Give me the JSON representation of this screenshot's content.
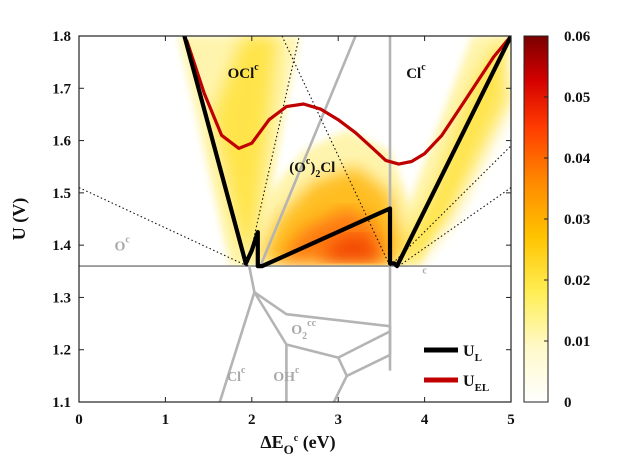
{
  "chart_data": {
    "type": "line",
    "xlabel": {
      "main": "ΔE",
      "sub": "O",
      "sup": "c",
      "unit": " (eV)"
    },
    "ylabel": "U (V)",
    "xlim": [
      0,
      5
    ],
    "ylim": [
      1.1,
      1.8
    ],
    "xticks": [
      0,
      1,
      2,
      3,
      4,
      5
    ],
    "xtick_labels": [
      "0",
      "1",
      "2",
      "3",
      "4",
      "5"
    ],
    "yticks": [
      1.1,
      1.2,
      1.3,
      1.4,
      1.5,
      1.6,
      1.7,
      1.8
    ],
    "ytick_labels": [
      "1.1",
      "1.2",
      "1.3",
      "1.4",
      "1.5",
      "1.6",
      "1.7",
      "1.8"
    ],
    "colorbar": {
      "min": 0,
      "max": 0.06,
      "ticks": [
        0,
        0.01,
        0.02,
        0.03,
        0.04,
        0.05,
        0.06
      ],
      "tick_labels": [
        "0",
        "0.01",
        "0.02",
        "0.03",
        "0.04",
        "0.05",
        "0.06"
      ]
    },
    "series": [
      {
        "name": "U_L",
        "label_main": "U",
        "label_sub": "L",
        "color": "#000000",
        "x": [
          1.22,
          1.93,
          2.0,
          2.07,
          2.07,
          2.12,
          3.6,
          3.6,
          3.65,
          3.68,
          5.0
        ],
        "y": [
          1.8,
          1.365,
          1.39,
          1.425,
          1.36,
          1.36,
          1.47,
          1.365,
          1.365,
          1.36,
          1.8
        ]
      },
      {
        "name": "U_EL",
        "label_main": "U",
        "label_sub": "EL",
        "color": "#c00000",
        "x": [
          1.25,
          1.45,
          1.65,
          1.85,
          2.0,
          2.2,
          2.4,
          2.6,
          2.8,
          3.0,
          3.2,
          3.4,
          3.55,
          3.7,
          3.85,
          4.0,
          4.2,
          4.4,
          4.6,
          4.8,
          5.0
        ],
        "y": [
          1.79,
          1.69,
          1.61,
          1.585,
          1.595,
          1.64,
          1.665,
          1.67,
          1.66,
          1.64,
          1.615,
          1.585,
          1.562,
          1.555,
          1.56,
          1.575,
          1.61,
          1.66,
          1.71,
          1.76,
          1.8
        ]
      }
    ],
    "region_boundaries": [
      {
        "x": [
          0,
          5
        ],
        "y": [
          1.36,
          1.36
        ]
      },
      {
        "x": [
          3.6,
          3.6
        ],
        "y": [
          1.36,
          1.8
        ]
      },
      {
        "x": [
          3.6,
          3.6
        ],
        "y": [
          1.36,
          1.16
        ]
      },
      {
        "x": [
          2.1,
          3.2
        ],
        "y": [
          1.36,
          1.8
        ]
      },
      {
        "x": [
          1.97,
          2.03
        ],
        "y": [
          1.36,
          1.31
        ]
      },
      {
        "x": [
          2.03,
          1.63
        ],
        "y": [
          1.31,
          1.1
        ]
      },
      {
        "x": [
          2.03,
          2.4,
          3.6
        ],
        "y": [
          1.31,
          1.268,
          1.245
        ]
      },
      {
        "x": [
          2.03,
          2.4,
          3.0,
          3.6
        ],
        "y": [
          1.31,
          1.21,
          1.185,
          1.235
        ]
      },
      {
        "x": [
          2.4,
          2.4
        ],
        "y": [
          1.21,
          1.1
        ]
      },
      {
        "x": [
          3.0,
          3.1
        ],
        "y": [
          1.185,
          1.15
        ]
      },
      {
        "x": [
          3.1,
          2.95
        ],
        "y": [
          1.15,
          1.1
        ]
      },
      {
        "x": [
          3.1,
          3.6,
          3.6
        ],
        "y": [
          1.15,
          1.19,
          1.245
        ]
      }
    ],
    "dotted_lines": [
      {
        "x": [
          0,
          1.95
        ],
        "y": [
          1.51,
          1.36
        ]
      },
      {
        "x": [
          1.95,
          2.55
        ],
        "y": [
          1.36,
          1.8
        ]
      },
      {
        "x": [
          2.35,
          3.6
        ],
        "y": [
          1.8,
          1.36
        ]
      },
      {
        "x": [
          3.6,
          5.0
        ],
        "y": [
          1.36,
          1.59
        ]
      },
      {
        "x": [
          5.0,
          3.7
        ],
        "y": [
          1.51,
          1.36
        ]
      }
    ],
    "density_bands": [
      {
        "name": "left-band",
        "lo": [
          [
            1.15,
            1.8
          ],
          [
            1.75,
            1.36
          ]
        ],
        "hi": [
          [
            2.55,
            1.8
          ],
          [
            2.05,
            1.36
          ]
        ]
      },
      {
        "name": "right-band",
        "lo": [
          [
            3.55,
            1.36
          ],
          [
            4.55,
            1.8
          ]
        ],
        "hi": [
          [
            3.95,
            1.36
          ],
          [
            5.05,
            1.8
          ]
        ]
      },
      {
        "name": "middle-blob",
        "poly": [
          [
            2.0,
            1.36
          ],
          [
            2.2,
            1.5
          ],
          [
            2.6,
            1.58
          ],
          [
            3.1,
            1.62
          ],
          [
            3.6,
            1.58
          ],
          [
            3.9,
            1.45
          ],
          [
            3.8,
            1.36
          ]
        ]
      }
    ],
    "region_labels": [
      {
        "id": "ocl",
        "text": "OCl",
        "sup": "c",
        "x": 1.9,
        "y": 1.72,
        "style": "dark"
      },
      {
        "id": "clc",
        "text": "Cl",
        "sup": "c",
        "x": 3.9,
        "y": 1.72,
        "style": "dark"
      },
      {
        "id": "o2cl",
        "text": "(O",
        "sup": "c",
        "after": ")",
        "sub": "2",
        "tail": "Cl",
        "x": 2.7,
        "y": 1.54,
        "style": "dark"
      },
      {
        "id": "oc",
        "text": "O",
        "sup": "c",
        "x": 0.5,
        "y": 1.39,
        "style": "grey"
      },
      {
        "id": "c",
        "text": "",
        "sup": "c",
        "x": 4.0,
        "y": 1.33,
        "style": "grey"
      },
      {
        "id": "o2cc",
        "text": "O",
        "sub": "2",
        "sup": "cc",
        "x": 2.6,
        "y": 1.23,
        "style": "grey"
      },
      {
        "id": "clc-low",
        "text": "Cl",
        "sup": "c",
        "x": 1.82,
        "y": 1.14,
        "style": "grey"
      },
      {
        "id": "ohc",
        "text": "OH",
        "sup": "c",
        "x": 2.4,
        "y": 1.14,
        "style": "grey"
      }
    ]
  }
}
